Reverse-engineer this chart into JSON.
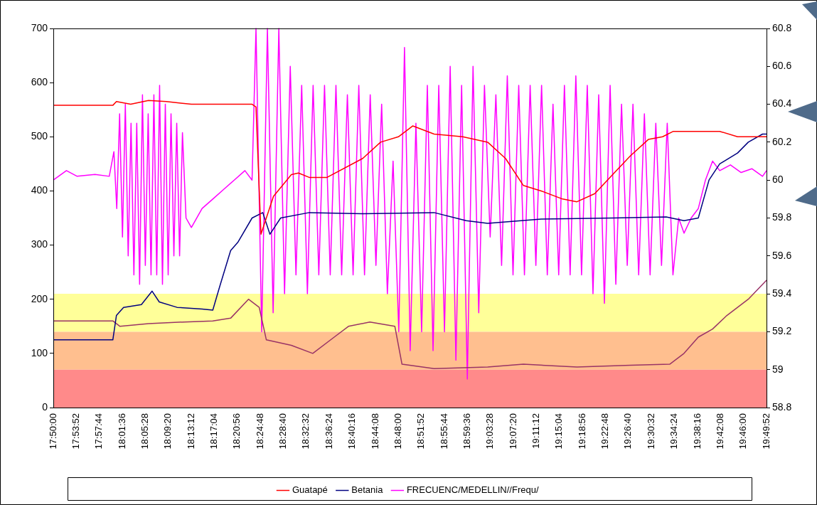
{
  "chart_data": {
    "type": "line",
    "legend": "bottom",
    "marker": "none",
    "xlim": [
      17.8333,
      19.8311
    ],
    "xticks": [
      {
        "value": 17.8333,
        "label": "17:50:00"
      },
      {
        "value": 17.8978,
        "label": "17:53:52"
      },
      {
        "value": 17.9622,
        "label": "17:57:44"
      },
      {
        "value": 18.0267,
        "label": "18:01:36"
      },
      {
        "value": 18.0911,
        "label": "18:05:28"
      },
      {
        "value": 18.1556,
        "label": "18:09:20"
      },
      {
        "value": 18.22,
        "label": "18:13:12"
      },
      {
        "value": 18.2844,
        "label": "18:17:04"
      },
      {
        "value": 18.3489,
        "label": "18:20:56"
      },
      {
        "value": 18.4133,
        "label": "18:24:48"
      },
      {
        "value": 18.4778,
        "label": "18:28:40"
      },
      {
        "value": 18.5422,
        "label": "18:32:32"
      },
      {
        "value": 18.6067,
        "label": "18:36:24"
      },
      {
        "value": 18.6711,
        "label": "18:40:16"
      },
      {
        "value": 18.7356,
        "label": "18:44:08"
      },
      {
        "value": 18.8,
        "label": "18:48:00"
      },
      {
        "value": 18.8644,
        "label": "18:51:52"
      },
      {
        "value": 18.9289,
        "label": "18:55:44"
      },
      {
        "value": 18.9933,
        "label": "18:59:36"
      },
      {
        "value": 19.0578,
        "label": "19:03:28"
      },
      {
        "value": 19.1222,
        "label": "19:07:20"
      },
      {
        "value": 19.1867,
        "label": "19:11:12"
      },
      {
        "value": 19.2511,
        "label": "19:15:04"
      },
      {
        "value": 19.3156,
        "label": "19:18:56"
      },
      {
        "value": 19.38,
        "label": "19:22:48"
      },
      {
        "value": 19.4444,
        "label": "19:26:40"
      },
      {
        "value": 19.5089,
        "label": "19:30:32"
      },
      {
        "value": 19.5733,
        "label": "19:34:24"
      },
      {
        "value": 19.6378,
        "label": "19:38:16"
      },
      {
        "value": 19.7022,
        "label": "19:42:08"
      },
      {
        "value": 19.7667,
        "label": "19:46:00"
      },
      {
        "value": 19.8311,
        "label": "19:49:52"
      }
    ],
    "ylim": [
      0,
      700
    ],
    "yticks": [
      0,
      100,
      200,
      300,
      400,
      500,
      600,
      700
    ],
    "y2lim": [
      58.8,
      60.8
    ],
    "y2ticks": [
      58.8,
      59,
      59.2,
      59.4,
      59.6,
      59.8,
      60,
      60.2,
      60.4,
      60.6,
      60.8
    ],
    "bands": [
      {
        "axis": "y2",
        "from": 59.2,
        "to": 59.4,
        "color": "#ffff99"
      },
      {
        "axis": "y2",
        "from": 59.0,
        "to": 59.2,
        "color": "#ffbf8f"
      },
      {
        "axis": "y2",
        "from": 58.8,
        "to": 59.0,
        "color": "#ff8a8a"
      }
    ],
    "series": [
      {
        "name": "Guatapé",
        "color": "#ff0000",
        "x": [
          17.8333,
          18.0,
          18.01,
          18.05,
          18.1,
          18.15,
          18.19,
          18.22,
          18.39,
          18.401,
          18.415,
          18.45,
          18.5,
          18.52,
          18.55,
          18.6,
          18.7,
          18.75,
          18.8,
          18.84,
          18.9,
          18.98,
          19.05,
          19.1,
          19.15,
          19.2,
          19.26,
          19.3,
          19.35,
          19.4,
          19.45,
          19.5,
          19.54,
          19.57,
          19.65,
          19.7,
          19.75,
          19.8311
        ],
        "values": [
          558,
          558,
          565,
          560,
          567,
          565,
          562,
          560,
          560,
          555,
          320,
          390,
          430,
          433,
          425,
          425,
          460,
          490,
          500,
          520,
          505,
          500,
          490,
          460,
          410,
          400,
          385,
          380,
          395,
          430,
          465,
          495,
          500,
          510,
          510,
          510,
          500,
          500
        ]
      },
      {
        "name": "Betania",
        "color": "#000080",
        "x": [
          17.8333,
          18.0,
          18.01,
          18.03,
          18.08,
          18.11,
          18.13,
          18.18,
          18.25,
          18.28,
          18.3,
          18.33,
          18.35,
          18.39,
          18.42,
          18.44,
          18.47,
          18.55,
          18.7,
          18.9,
          18.99,
          19.05,
          19.2,
          19.4,
          19.55,
          19.6,
          19.64,
          19.67,
          19.7,
          19.75,
          19.78,
          19.82,
          19.8311
        ],
        "values": [
          125,
          125,
          170,
          185,
          190,
          215,
          195,
          185,
          182,
          180,
          225,
          290,
          305,
          350,
          360,
          320,
          350,
          360,
          358,
          360,
          345,
          340,
          348,
          350,
          352,
          345,
          350,
          420,
          450,
          470,
          490,
          505,
          505
        ]
      },
      {
        "color": "#993366",
        "x": [
          17.8333,
          18.0,
          18.02,
          18.1,
          18.2,
          18.28,
          18.33,
          18.38,
          18.41,
          18.43,
          18.5,
          18.56,
          18.62,
          18.66,
          18.72,
          18.79,
          18.81,
          18.9,
          19.05,
          19.15,
          19.3,
          19.45,
          19.56,
          19.6,
          19.64,
          19.68,
          19.72,
          19.78,
          19.8311
        ],
        "values": [
          160,
          160,
          150,
          155,
          158,
          160,
          165,
          200,
          185,
          125,
          115,
          100,
          130,
          150,
          158,
          150,
          80,
          72,
          75,
          80,
          75,
          78,
          80,
          100,
          130,
          145,
          170,
          200,
          235
        ]
      },
      {
        "name": "FRECUENC/MEDELLIN//Frequ/",
        "color": "#ff00ff",
        "axis": "y2",
        "x": [
          17.8333,
          17.87,
          17.9,
          17.95,
          17.99,
          18.003,
          18.011,
          18.019,
          18.027,
          18.035,
          18.043,
          18.051,
          18.059,
          18.067,
          18.075,
          18.083,
          18.091,
          18.099,
          18.107,
          18.115,
          18.123,
          18.131,
          18.139,
          18.147,
          18.155,
          18.163,
          18.171,
          18.179,
          18.187,
          18.195,
          18.205,
          18.22,
          18.25,
          18.28,
          18.31,
          18.34,
          18.37,
          18.39,
          18.401,
          18.417,
          18.433,
          18.449,
          18.465,
          18.481,
          18.497,
          18.513,
          18.529,
          18.545,
          18.561,
          18.577,
          18.593,
          18.609,
          18.625,
          18.641,
          18.657,
          18.673,
          18.689,
          18.705,
          18.721,
          18.737,
          18.753,
          18.769,
          18.785,
          18.801,
          18.817,
          18.833,
          18.849,
          18.865,
          18.881,
          18.897,
          18.913,
          18.929,
          18.945,
          18.961,
          18.977,
          18.993,
          19.009,
          19.025,
          19.041,
          19.057,
          19.073,
          19.089,
          19.105,
          19.121,
          19.137,
          19.153,
          19.169,
          19.185,
          19.201,
          19.217,
          19.233,
          19.249,
          19.265,
          19.281,
          19.297,
          19.313,
          19.329,
          19.345,
          19.361,
          19.377,
          19.393,
          19.409,
          19.425,
          19.441,
          19.457,
          19.473,
          19.489,
          19.505,
          19.521,
          19.537,
          19.553,
          19.569,
          19.585,
          19.6,
          19.62,
          19.64,
          19.66,
          19.68,
          19.7,
          19.73,
          19.76,
          19.79,
          19.82,
          19.8311
        ],
        "values": [
          60.0,
          60.05,
          60.02,
          60.03,
          60.02,
          60.15,
          59.85,
          60.35,
          59.7,
          60.4,
          59.6,
          60.3,
          59.5,
          60.3,
          59.45,
          60.45,
          59.55,
          60.35,
          59.5,
          60.45,
          59.5,
          60.5,
          59.45,
          60.4,
          59.5,
          60.35,
          59.6,
          60.3,
          59.6,
          60.25,
          59.8,
          59.75,
          59.85,
          59.9,
          59.95,
          60.0,
          60.05,
          60.0,
          60.8,
          59.2,
          60.8,
          59.3,
          60.8,
          59.4,
          60.6,
          59.5,
          60.5,
          59.4,
          60.5,
          59.5,
          60.5,
          59.5,
          60.5,
          59.5,
          60.45,
          59.5,
          60.5,
          59.5,
          60.45,
          59.55,
          60.4,
          59.4,
          60.1,
          59.2,
          60.7,
          59.1,
          60.3,
          59.2,
          60.5,
          59.1,
          60.5,
          59.2,
          60.6,
          59.05,
          60.5,
          58.95,
          60.6,
          59.3,
          60.5,
          59.7,
          60.45,
          59.55,
          60.55,
          59.5,
          60.5,
          59.5,
          60.5,
          59.55,
          60.5,
          59.5,
          60.4,
          59.5,
          60.5,
          59.5,
          60.55,
          59.5,
          60.5,
          59.4,
          60.45,
          59.35,
          60.5,
          59.45,
          60.4,
          59.55,
          60.4,
          59.5,
          60.35,
          59.5,
          60.3,
          59.55,
          60.3,
          59.5,
          59.8,
          59.72,
          59.8,
          59.85,
          60.0,
          60.1,
          60.05,
          60.08,
          60.04,
          60.06,
          60.02,
          60.05
        ]
      }
    ]
  }
}
